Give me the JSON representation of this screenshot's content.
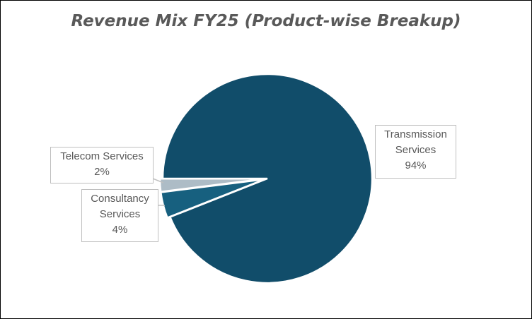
{
  "chart_data": {
    "type": "pie",
    "title": "Revenue Mix FY25 (Product-wise Breakup)",
    "start_angle_deg": 270,
    "slices": [
      {
        "name": "Transmission Services",
        "line1": "Transmission",
        "line2": "Services",
        "value": 94,
        "label": "94%",
        "color": "#114d6a"
      },
      {
        "name": "Consultancy Services",
        "line1": "Consultancy",
        "line2": "Services",
        "value": 4,
        "label": "4%",
        "color": "#17607f"
      },
      {
        "name": "Telecom Services",
        "line1": "Telecom Services",
        "line2": "",
        "value": 2,
        "label": "2%",
        "color": "#adbcc6"
      }
    ],
    "legend": "none"
  }
}
